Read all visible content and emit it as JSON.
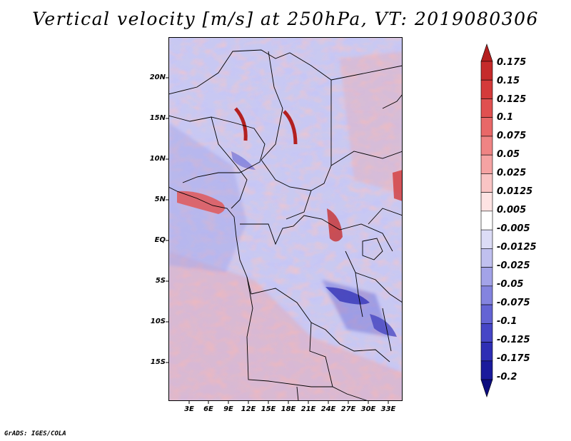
{
  "title": "Vertical velocity [m/s] at 250hPa, VT: 2019080306",
  "map": {
    "latitude_labels": [
      "20N",
      "15N",
      "10N",
      "5N",
      "EQ",
      "5S",
      "10S",
      "15S"
    ],
    "longitude_labels": [
      "3E",
      "6E",
      "9E",
      "12E",
      "15E",
      "18E",
      "21E",
      "24E",
      "27E",
      "30E",
      "33E"
    ]
  },
  "colorbar": {
    "labels": [
      "0.175",
      "0.15",
      "0.125",
      "0.1",
      "0.075",
      "0.05",
      "0.025",
      "0.0125",
      "0.005",
      "-0.005",
      "-0.0125",
      "-0.025",
      "-0.05",
      "-0.075",
      "-0.1",
      "-0.125",
      "-0.175",
      "-0.2"
    ],
    "colors": [
      "#b41e1e",
      "#c52b2b",
      "#d43a3a",
      "#e05050",
      "#e86868",
      "#ef8484",
      "#f5a3a3",
      "#f9c4c4",
      "#fde3e3",
      "#ffffff",
      "#dcdcf6",
      "#c0c0ef",
      "#a3a3e8",
      "#8484df",
      "#6464d4",
      "#4646c6",
      "#2e2eb4",
      "#1a1a9c",
      "#0c0c7e"
    ]
  },
  "credit": "GrADS: IGES/COLA"
}
